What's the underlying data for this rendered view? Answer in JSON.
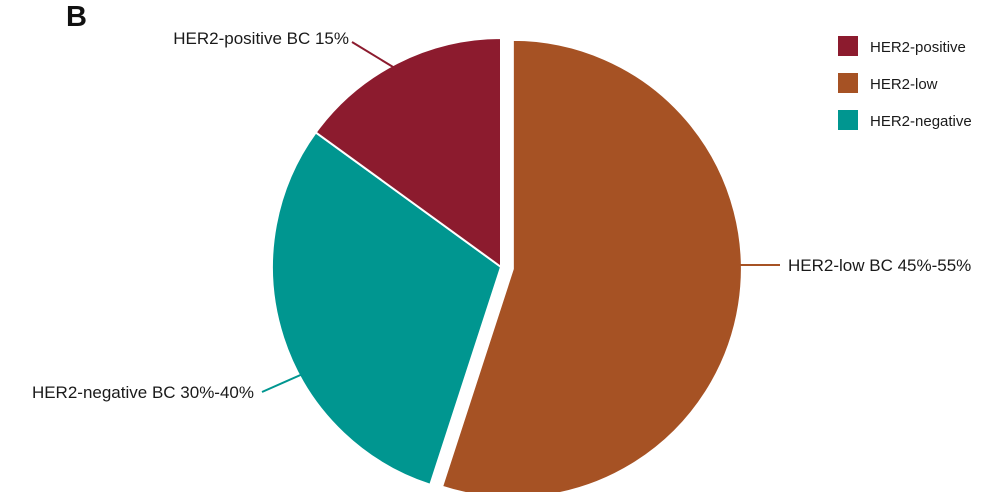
{
  "panel_label": "B",
  "chart_data": {
    "type": "pie",
    "title": "",
    "start_angle_deg": 0,
    "slices": [
      {
        "name": "HER2-low",
        "value": 55,
        "color": "#A65224",
        "exploded": true,
        "callout": "HER2-low BC 45%-55%"
      },
      {
        "name": "HER2-negative",
        "value": 30,
        "color": "#009690",
        "exploded": false,
        "callout": "HER2-negative BC 30%-40%"
      },
      {
        "name": "HER2-positive",
        "value": 15,
        "color": "#8C1B2E",
        "exploded": false,
        "callout": "HER2-positive BC 15%"
      }
    ],
    "legend": {
      "placement": "top-right",
      "entries": [
        {
          "label": "HER2-positive",
          "color": "#8C1B2E"
        },
        {
          "label": "HER2-low",
          "color": "#A65224"
        },
        {
          "label": "HER2-negative",
          "color": "#009690"
        }
      ]
    }
  }
}
